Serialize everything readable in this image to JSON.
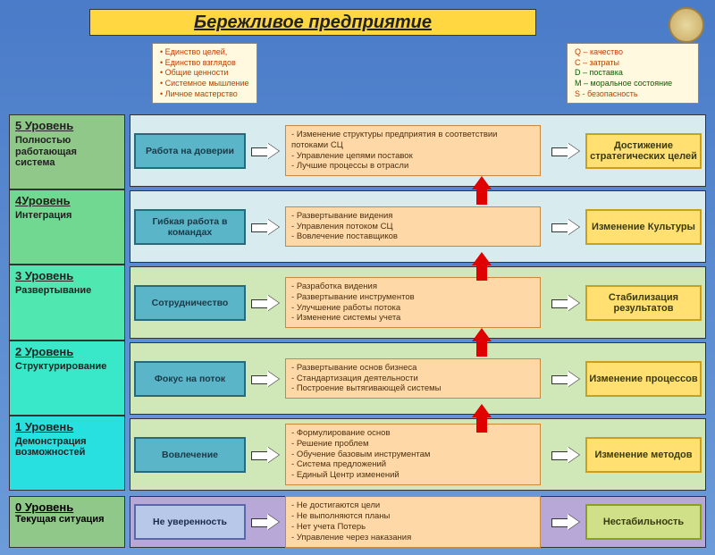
{
  "title": "Бережливое предприятие",
  "principles": [
    "Единство целей,",
    "Единство взглядов",
    "Общие ценности",
    "Системное мышление",
    "Личное мастерство"
  ],
  "legend": [
    {
      "text": "Q – качество",
      "color": "#c04000"
    },
    {
      "text": "C – затраты",
      "color": "#c04000"
    },
    {
      "text": "D – поставка",
      "color": "#006000"
    },
    {
      "text": "M – моральное состояние",
      "color": "#006000"
    },
    {
      "text": "S - безопасность",
      "color": "#c04000"
    }
  ],
  "levels_gradient": {
    "level5": "#8fc888",
    "level4": "#70d890",
    "level3": "#50e8b0",
    "level2": "#38e8c8",
    "level1": "#28e0e0"
  },
  "row_bg": {
    "level5": "#d8ecf0",
    "level4": "#d8ecf0",
    "level3": "#d0e8b8",
    "level2": "#d0e8b8",
    "level1": "#d0e8b8"
  },
  "levels": [
    {
      "key": "5",
      "title": "5 Уровень",
      "desc": "Полностью работающая система",
      "left": "Работа на доверии",
      "mid": [
        "Изменение структуры предприятия в соответствии потоками СЦ",
        "Управление цепями поставок",
        "Лучшие процессы в отрасли"
      ],
      "right": "Достижение стратегических целей"
    },
    {
      "key": "4",
      "title": "4Уровень",
      "desc": "Интеграция",
      "left": "Гибкая работа в командах",
      "mid": [
        "Развертывание видения",
        "Управления потоком СЦ",
        "Вовлечение поставщиков"
      ],
      "right": "Изменение Культуры"
    },
    {
      "key": "3",
      "title": "3 Уровень",
      "desc": "Развертывание",
      "left": "Сотрудничество",
      "mid": [
        "Разработка видения",
        "Развертывание инструментов",
        "Улучшение работы потока",
        "Изменение системы  учета"
      ],
      "right": "Стабилизация результатов"
    },
    {
      "key": "2",
      "title": "2 Уровень",
      "desc": "Структурирование",
      "left": "Фокус на поток",
      "mid": [
        "Развертывание  основ бизнеса",
        "Стандартизация  деятельности",
        "Построение вытягивающей системы"
      ],
      "right": "Изменение процессов"
    },
    {
      "key": "1",
      "title": "1 Уровень",
      "desc": "Демонстрация возможностей",
      "left": "Вовлечение",
      "mid": [
        "Формулирование основ",
        "Решение проблем",
        "Обучение базовым инструментам",
        "Система предложений",
        "Единый Центр изменений"
      ],
      "right": "Изменение методов"
    }
  ],
  "level0": {
    "title": "0 Уровень",
    "desc": "Текущая ситуация",
    "left": "Не уверенность",
    "mid": [
      "Не достигаются  цели",
      "Не выполняются планы",
      "Нет учета  Потерь",
      "Управление через наказания"
    ],
    "right": "Нестабильность"
  }
}
